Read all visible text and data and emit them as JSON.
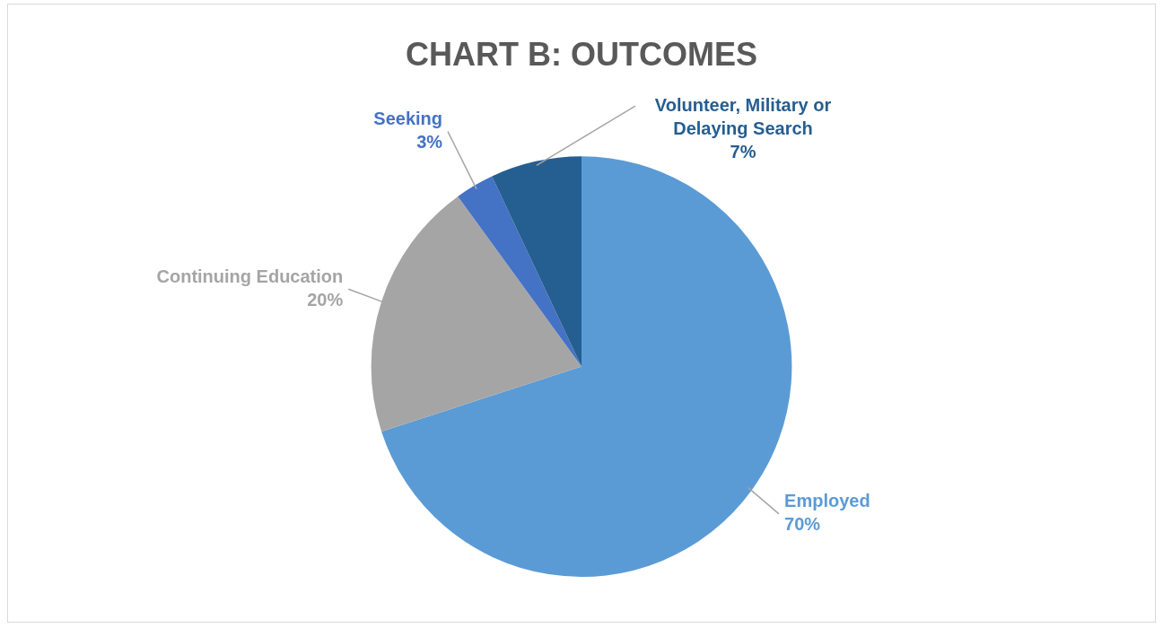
{
  "chart_data": {
    "type": "pie",
    "title": "CHART B: OUTCOMES",
    "categories": [
      "Employed",
      "Continuing Education",
      "Seeking",
      "Volunteer, Military or Delaying Search"
    ],
    "values": [
      70,
      20,
      3,
      7
    ],
    "value_labels": [
      "70%",
      "20%",
      "3%",
      "7%"
    ],
    "colors": [
      "#5b9bd5",
      "#a5a5a5",
      "#4472c4",
      "#255e91"
    ],
    "legend": false
  }
}
